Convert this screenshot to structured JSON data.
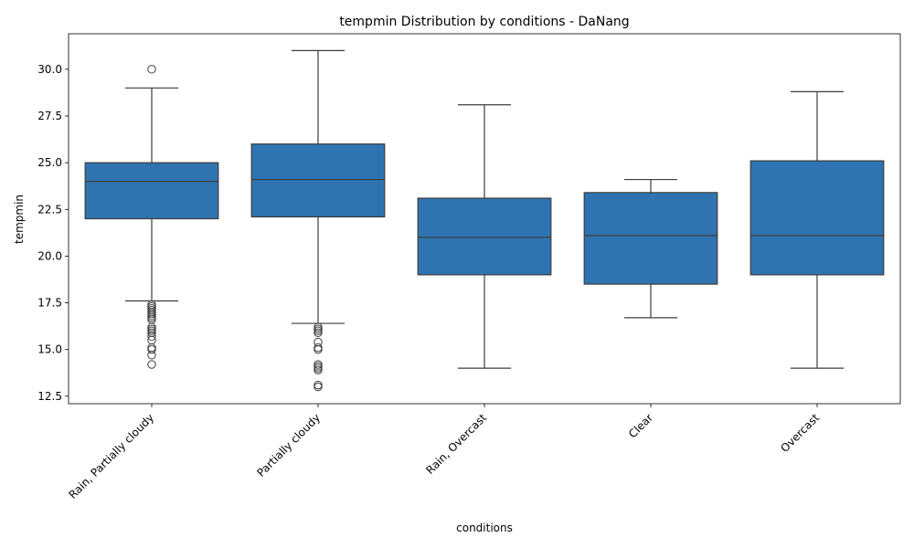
{
  "chart_data": {
    "type": "box",
    "title": "tempmin Distribution by conditions - DaNang",
    "xlabel": "conditions",
    "ylabel": "tempmin",
    "ylim": [
      12.1,
      31.9
    ],
    "yticks": [
      12.5,
      15.0,
      17.5,
      20.0,
      22.5,
      25.0,
      27.5,
      30.0
    ],
    "ytick_labels": [
      "12.5",
      "15.0",
      "17.5",
      "20.0",
      "22.5",
      "25.0",
      "27.5",
      "30.0"
    ],
    "categories": [
      "Rain, Partially cloudy",
      "Partially cloudy",
      "Rain, Overcast",
      "Clear",
      "Overcast"
    ],
    "box_color": "#2f73b0",
    "boxes": [
      {
        "q1": 22.0,
        "median": 24.0,
        "q3": 25.0,
        "whisker_low": 17.6,
        "whisker_high": 29.0,
        "outliers": [
          30.0,
          17.4,
          17.3,
          17.2,
          17.1,
          17.0,
          16.9,
          16.8,
          16.7,
          16.6,
          16.2,
          16.1,
          16.0,
          15.9,
          15.7,
          15.5,
          15.1,
          15.0,
          14.7,
          14.2
        ]
      },
      {
        "q1": 22.1,
        "median": 24.1,
        "q3": 26.0,
        "whisker_low": 16.4,
        "whisker_high": 31.0,
        "outliers": [
          16.2,
          16.1,
          16.0,
          15.9,
          15.4,
          15.1,
          15.0,
          14.2,
          14.1,
          14.0,
          13.9,
          13.1,
          13.0
        ]
      },
      {
        "q1": 19.0,
        "median": 21.0,
        "q3": 23.1,
        "whisker_low": 14.0,
        "whisker_high": 28.1,
        "outliers": []
      },
      {
        "q1": 18.5,
        "median": 21.1,
        "q3": 23.4,
        "whisker_low": 16.7,
        "whisker_high": 24.1,
        "outliers": []
      },
      {
        "q1": 19.0,
        "median": 21.1,
        "q3": 25.1,
        "whisker_low": 14.0,
        "whisker_high": 28.8,
        "outliers": []
      }
    ],
    "grid": false,
    "legend": "none"
  }
}
